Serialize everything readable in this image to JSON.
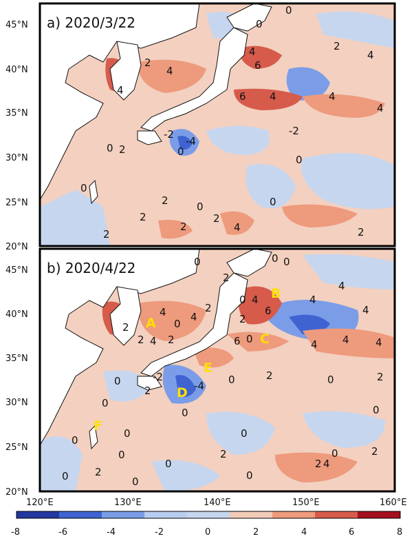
{
  "panels": [
    {
      "title": "a) 2020/3/22",
      "y_ticks": [
        "45°N",
        "40°N",
        "35°N",
        "30°N",
        "25°N",
        "20°N"
      ],
      "contour_labels": [
        "0",
        "2",
        "4",
        "6",
        "-2",
        "-4"
      ]
    },
    {
      "title": "b) 2020/4/22",
      "y_ticks": [
        "45°N",
        "40°N",
        "35°N",
        "30°N",
        "25°N",
        "20°N"
      ],
      "contour_labels": [
        "0",
        "2",
        "4",
        "6",
        "-2",
        "-4"
      ],
      "region_labels": [
        "A",
        "B",
        "C",
        "D",
        "E",
        "F"
      ]
    }
  ],
  "x_ticks": [
    "120°E",
    "130°E",
    "140°E",
    "150°E",
    "160°E"
  ],
  "colorbar": {
    "ticks": [
      "-8",
      "-6",
      "-4",
      "-2",
      "0",
      "2",
      "4",
      "6",
      "8"
    ],
    "colors": [
      "#23389e",
      "#3f63d1",
      "#7b9de8",
      "#b9cdf0",
      "#c7d6ef",
      "#f2cab8",
      "#ee9a7d",
      "#d65b4b",
      "#a4101d"
    ]
  },
  "map_style": {
    "land": "#ffffff",
    "coast": "#111111",
    "positive_base": "#f3d0bf",
    "negative_base": "#c7d6ef"
  }
}
